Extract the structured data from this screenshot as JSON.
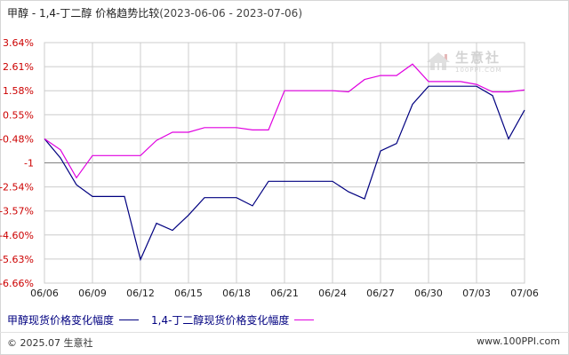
{
  "header": {
    "title": "甲醇 - 1,4-丁二醇 价格趋势比较",
    "range": "(2023-06-06 - 2023-07-06)"
  },
  "watermark": {
    "brand": "生意社",
    "url": "100PPI.COM",
    "icon": "house-logo-icon"
  },
  "legend": {
    "series1_label": "甲醇现货价格变化幅度",
    "series2_label": "1,4-丁二醇现货价格变化幅度"
  },
  "footer": {
    "copyright": "© 2025.07 生意社",
    "site": "www.100PPI.com"
  },
  "colors": {
    "series1": "#000080",
    "series2": "#e000e0",
    "grid": "#cccccc",
    "zero_line": "#808080",
    "axis_text": "#cc0000"
  },
  "chart_data": {
    "type": "line",
    "title": "甲醇 - 1,4-丁二醇 价格趋势比较",
    "x_tick_labels": [
      "06/06",
      "06/09",
      "06/12",
      "06/15",
      "06/18",
      "06/21",
      "06/24",
      "06/27",
      "06/30",
      "07/03",
      "07/06"
    ],
    "y_tick_labels": [
      "3.64%",
      "2.61%",
      "1.58%",
      "0.55%",
      "-0.48%",
      "-1",
      "-2.54%",
      "-3.57%",
      "-4.60%",
      "-5.63%",
      "-6.66%"
    ],
    "ylim": [
      -6.66,
      3.64
    ],
    "grid": true,
    "legend_position": "bottom",
    "x": [
      "06/06",
      "06/07",
      "06/08",
      "06/09",
      "06/10",
      "06/11",
      "06/12",
      "06/13",
      "06/14",
      "06/15",
      "06/16",
      "06/17",
      "06/18",
      "06/19",
      "06/20",
      "06/21",
      "06/22",
      "06/23",
      "06/24",
      "06/25",
      "06/26",
      "06/27",
      "06/28",
      "06/29",
      "06/30",
      "07/01",
      "07/02",
      "07/03",
      "07/04",
      "07/05",
      "07/06"
    ],
    "series": [
      {
        "name": "甲醇现货价格变化幅度",
        "values": [
          -0.48,
          -1.3,
          -2.45,
          -2.95,
          -2.95,
          -2.95,
          -5.65,
          -4.1,
          -4.4,
          -3.75,
          -3.0,
          -3.0,
          -3.0,
          -3.35,
          -2.3,
          -2.3,
          -2.3,
          -2.3,
          -2.3,
          -2.75,
          -3.05,
          -1.0,
          -0.68,
          1.0,
          1.77,
          1.77,
          1.77,
          1.77,
          1.37,
          -0.48,
          0.75
        ]
      },
      {
        "name": "1,4-丁二醇现货价格变化幅度",
        "values": [
          -0.48,
          -0.95,
          -2.15,
          -1.2,
          -1.2,
          -1.2,
          -1.2,
          -0.55,
          -0.2,
          -0.2,
          0.0,
          0.0,
          0.0,
          -0.1,
          -0.1,
          1.58,
          1.58,
          1.58,
          1.58,
          1.53,
          2.06,
          2.23,
          2.23,
          2.72,
          1.97,
          1.97,
          1.97,
          1.85,
          1.53,
          1.53,
          1.61
        ]
      }
    ]
  }
}
